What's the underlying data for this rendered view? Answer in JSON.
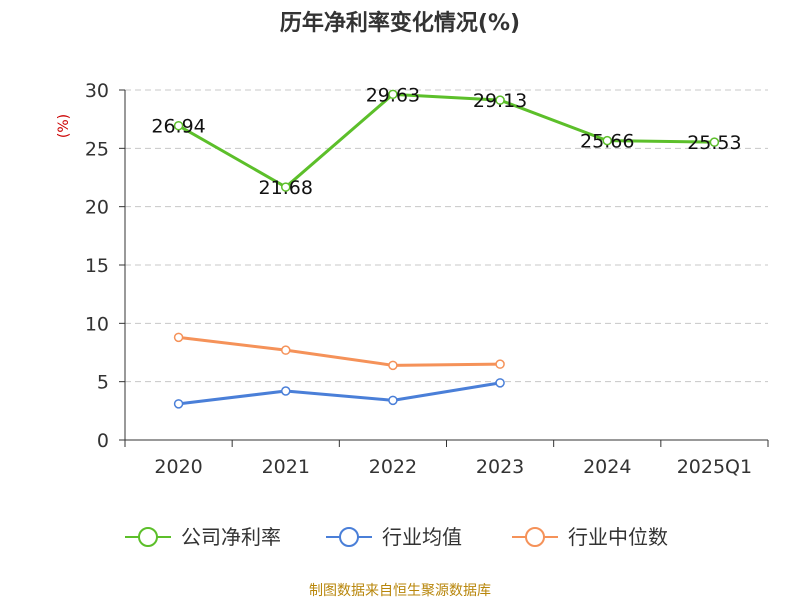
{
  "chart_data": {
    "type": "line",
    "title": "历年净利率变化情况(%)",
    "ylabel": "(%)",
    "ylim": [
      0,
      30
    ],
    "yticks": [
      0,
      5,
      10,
      15,
      20,
      25,
      30
    ],
    "grid": true,
    "legend_position": "bottom",
    "categories": [
      "2020",
      "2021",
      "2022",
      "2023",
      "2024",
      "2025Q1"
    ],
    "series": [
      {
        "name": "公司净利率",
        "color": "#5cbf2a",
        "values": [
          26.94,
          21.68,
          29.63,
          29.13,
          25.66,
          25.53
        ],
        "labels": [
          "26.94",
          "21.68",
          "29.63",
          "29.13",
          "25.66",
          "25.53"
        ]
      },
      {
        "name": "行业均值",
        "color": "#4a7fd8",
        "values": [
          3.1,
          4.2,
          3.4,
          4.9,
          null,
          null
        ]
      },
      {
        "name": "行业中位数",
        "color": "#f59259",
        "values": [
          8.8,
          7.7,
          6.4,
          6.5,
          null,
          null
        ]
      }
    ],
    "source": "制图数据来自恒生聚源数据库"
  }
}
